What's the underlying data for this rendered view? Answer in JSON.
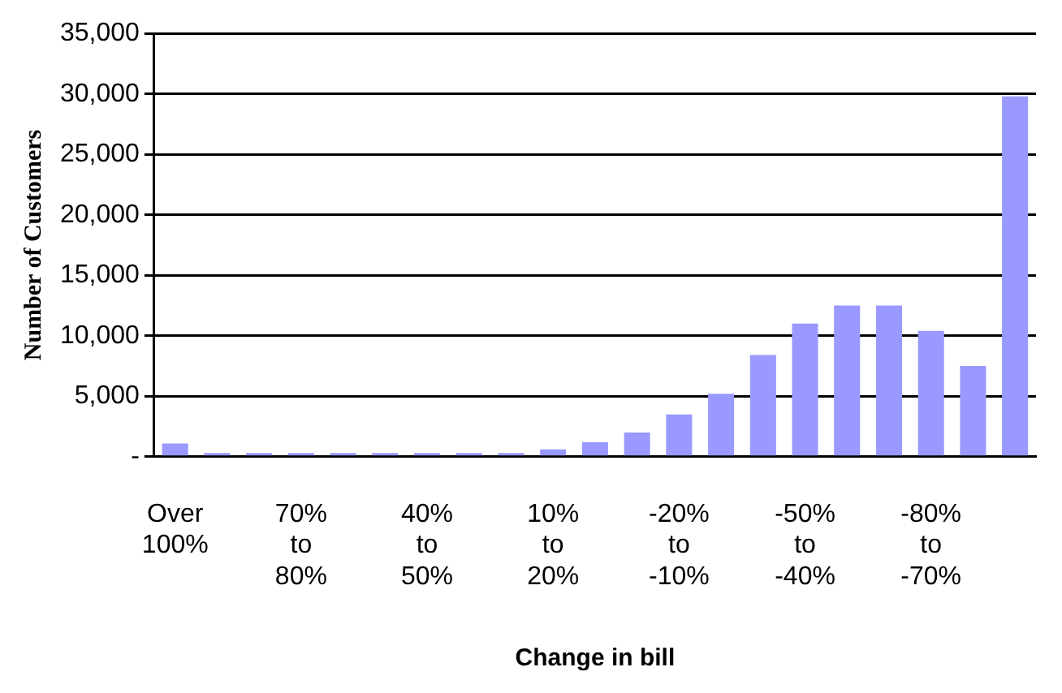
{
  "chart_data": {
    "type": "bar",
    "xlabel": "Change in bill",
    "ylabel": "Number of Customers",
    "categories": [
      "Over 100%",
      null,
      null,
      "70% to 80%",
      null,
      null,
      "40% to 50%",
      null,
      null,
      "10% to 20%",
      null,
      null,
      "-20% to -10%",
      null,
      null,
      "-50% to -40%",
      null,
      null,
      "-80% to -70%",
      null,
      null
    ],
    "values": [
      1100,
      300,
      300,
      300,
      300,
      300,
      300,
      300,
      300,
      600,
      1200,
      2000,
      3500,
      5200,
      8400,
      11000,
      12500,
      12500,
      10400,
      7500,
      29800
    ],
    "color": "#9999ff",
    "ylim": [
      0,
      35000
    ],
    "yticks": [
      {
        "value": 0,
        "label": "-"
      },
      {
        "value": 5000,
        "label": "5,000"
      },
      {
        "value": 10000,
        "label": "10,000"
      },
      {
        "value": 15000,
        "label": "15,000"
      },
      {
        "value": 20000,
        "label": "20,000"
      },
      {
        "value": 25000,
        "label": "25,000"
      },
      {
        "value": 30000,
        "label": "30,000"
      },
      {
        "value": 35000,
        "label": "35,000"
      }
    ],
    "grid": "y",
    "legend": false
  }
}
